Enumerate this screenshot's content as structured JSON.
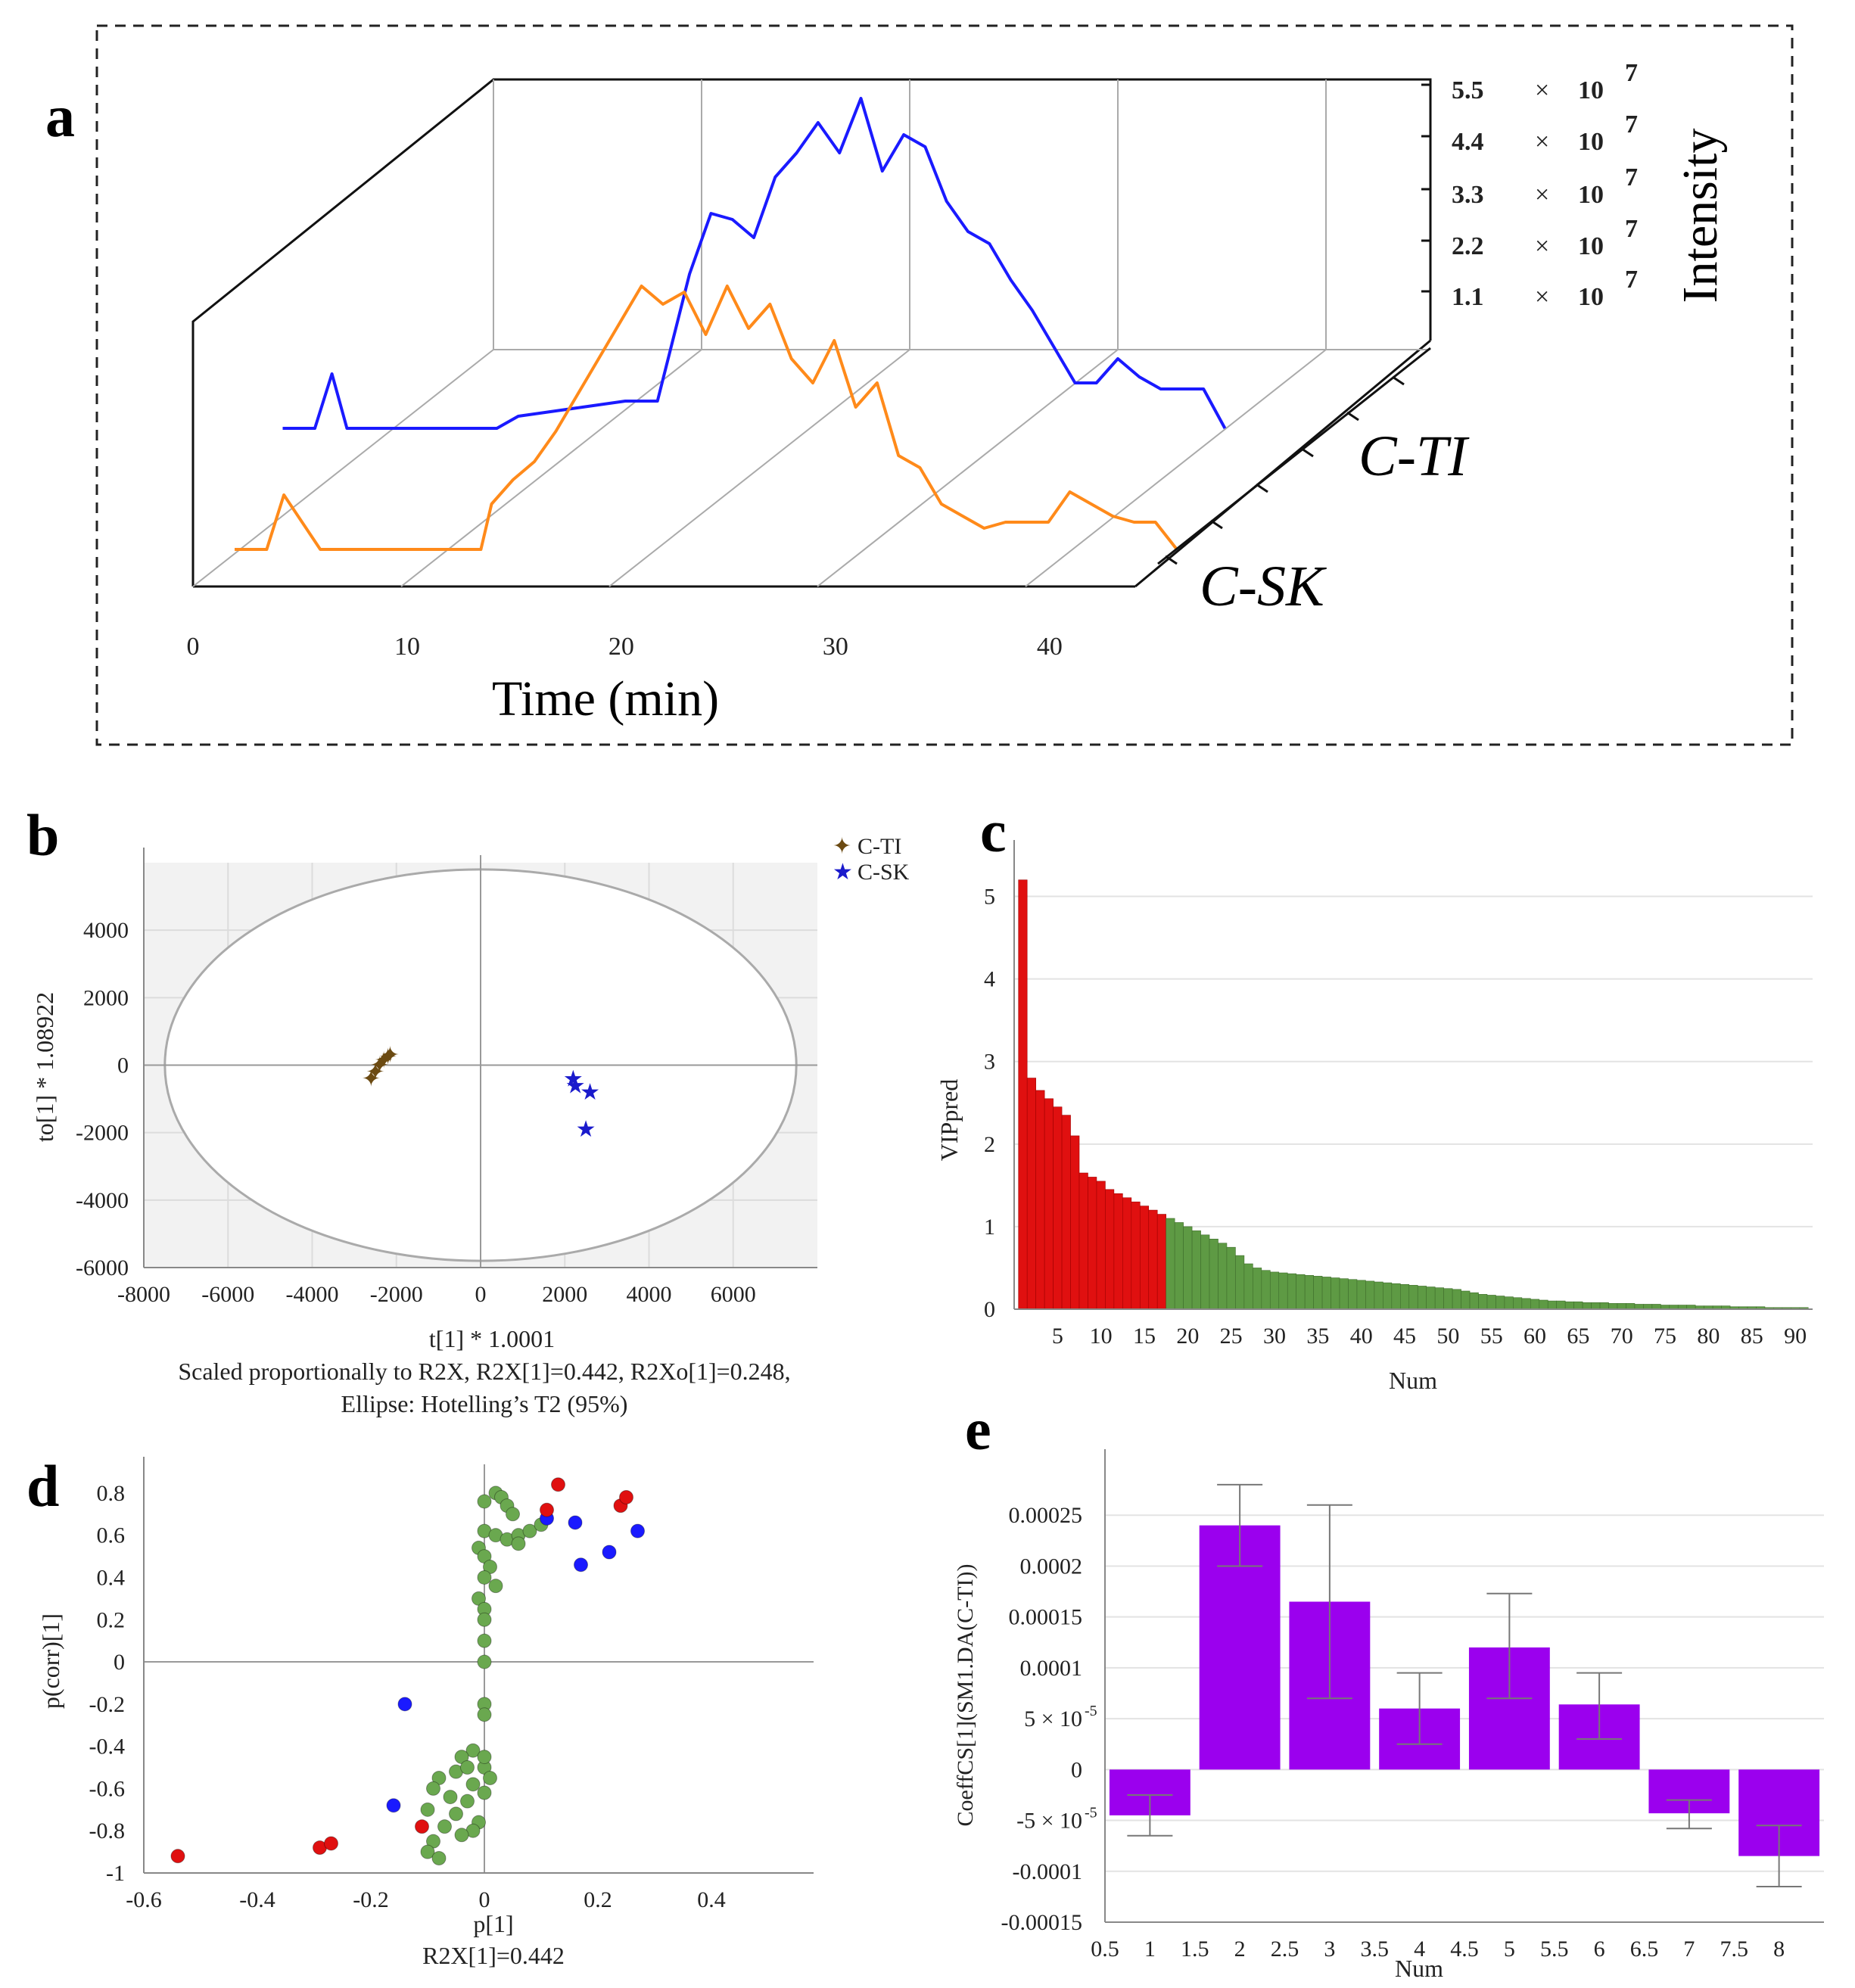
{
  "panel_letters": {
    "a": "a",
    "b": "b",
    "c": "c",
    "d": "d",
    "e": "e"
  },
  "chart_data": [
    {
      "id": "a",
      "type": "line",
      "title": "",
      "xlabel": "Time (min)",
      "ylabel": "Intensity",
      "x_ticks": [
        "0",
        "10",
        "20",
        "30",
        "40"
      ],
      "xlim": [
        0,
        44
      ],
      "y_ticks": [
        {
          "mant": "1.1",
          "exp": "7"
        },
        {
          "mant": "2.2",
          "exp": "7"
        },
        {
          "mant": "3.3",
          "exp": "7"
        },
        {
          "mant": "4.4",
          "exp": "7"
        },
        {
          "mant": "5.5",
          "exp": "7"
        }
      ],
      "times_symbol": "×",
      "series_labels": [
        "C-TI",
        "C-SK"
      ],
      "series": [
        {
          "name": "C-TI",
          "color": "#1a1aff",
          "x": [
            0,
            1.5,
            2.3,
            3,
            6,
            10,
            11,
            12,
            14,
            16,
            17.5,
            19,
            20,
            21,
            22,
            23,
            24,
            25,
            26,
            27,
            28,
            29,
            30,
            31,
            32,
            33,
            34,
            35,
            36,
            37,
            38,
            39,
            40,
            41,
            42,
            43,
            44
          ],
          "y": [
            0.05,
            0.05,
            0.95,
            0.05,
            0.05,
            0.05,
            0.25,
            0.3,
            0.4,
            0.5,
            0.5,
            2.6,
            3.6,
            3.5,
            3.2,
            4.2,
            4.6,
            5.1,
            4.6,
            5.5,
            4.3,
            4.9,
            4.7,
            3.8,
            3.3,
            3.1,
            2.5,
            2.0,
            1.4,
            0.8,
            0.8,
            1.2,
            0.9,
            0.7,
            0.7,
            0.7,
            0.05
          ]
        },
        {
          "name": "C-SK",
          "color": "#ff8a1a",
          "x": [
            0,
            0.8,
            1.5,
            2.3,
            4,
            8,
            10,
            11.5,
            12,
            13,
            14,
            15,
            16,
            17,
            18,
            19,
            20,
            21,
            22,
            23,
            24,
            25,
            26,
            27,
            28,
            29,
            30,
            31,
            32,
            33,
            34,
            35,
            36,
            37,
            38,
            39,
            40,
            41,
            42,
            43,
            44
          ],
          "y": [
            0.05,
            0.05,
            0.05,
            0.95,
            0.05,
            0.05,
            0.05,
            0.05,
            0.8,
            1.2,
            1.5,
            2.0,
            2.6,
            3.2,
            3.8,
            4.4,
            4.1,
            4.3,
            3.6,
            4.4,
            3.7,
            4.1,
            3.2,
            2.8,
            3.5,
            2.4,
            2.8,
            1.6,
            1.4,
            0.8,
            0.6,
            0.4,
            0.5,
            0.5,
            0.5,
            1.0,
            0.8,
            0.6,
            0.5,
            0.5,
            0.05
          ]
        }
      ]
    },
    {
      "id": "b",
      "type": "scatter",
      "xlabel": "t[1] * 1.0001",
      "ylabel": "to[1] * 1.08922",
      "caption_lines": [
        "Scaled proportionally to R2X, R2X[1]=0.442, R2Xo[1]=0.248,",
        "Ellipse: Hotelling’s T2 (95%)"
      ],
      "xlim": [
        -8000,
        8000
      ],
      "ylim": [
        -6000,
        6000
      ],
      "x_ticks": [
        "-8000",
        "-6000",
        "-4000",
        "-2000",
        "0",
        "2000",
        "4000",
        "6000"
      ],
      "y_ticks": [
        "-6000",
        "-4000",
        "-2000",
        "0",
        "2000",
        "4000"
      ],
      "ellipse_radii": [
        7500,
        5800
      ],
      "legend_position": "top-right",
      "series": [
        {
          "name": "C-TI",
          "color": "#6b4a12",
          "marker": "✦",
          "points": [
            [
              -2600,
              -400
            ],
            [
              -2500,
              -200
            ],
            [
              -2400,
              0
            ],
            [
              -2300,
              150
            ],
            [
              -2200,
              250
            ],
            [
              -2150,
              300
            ]
          ]
        },
        {
          "name": "C-SK",
          "color": "#1a1acc",
          "marker": "★",
          "points": [
            [
              2200,
              -400
            ],
            [
              2250,
              -600
            ],
            [
              2600,
              -800
            ],
            [
              2500,
              -1900
            ]
          ]
        }
      ]
    },
    {
      "id": "c",
      "type": "bar",
      "xlabel": "Num",
      "ylabel": "VIPpred",
      "xlim": [
        0,
        92
      ],
      "ylim": [
        0,
        5.5
      ],
      "x_ticks": [
        "5",
        "10",
        "15",
        "20",
        "25",
        "30",
        "35",
        "40",
        "45",
        "50",
        "55",
        "60",
        "65",
        "70",
        "75",
        "80",
        "85",
        "90"
      ],
      "y_ticks": [
        "0",
        "1",
        "2",
        "3",
        "4",
        "5"
      ],
      "red_count": 17,
      "colors": {
        "high": "#e01010",
        "low": "#5e9a44"
      },
      "values": [
        5.2,
        2.8,
        2.65,
        2.55,
        2.45,
        2.35,
        2.1,
        1.65,
        1.6,
        1.55,
        1.45,
        1.4,
        1.35,
        1.3,
        1.25,
        1.2,
        1.15,
        1.1,
        1.05,
        1.0,
        0.95,
        0.9,
        0.85,
        0.8,
        0.75,
        0.65,
        0.55,
        0.5,
        0.47,
        0.45,
        0.44,
        0.43,
        0.42,
        0.41,
        0.4,
        0.39,
        0.38,
        0.37,
        0.36,
        0.35,
        0.34,
        0.33,
        0.32,
        0.31,
        0.3,
        0.29,
        0.28,
        0.27,
        0.26,
        0.25,
        0.24,
        0.22,
        0.2,
        0.18,
        0.17,
        0.16,
        0.15,
        0.14,
        0.13,
        0.12,
        0.11,
        0.1,
        0.1,
        0.09,
        0.09,
        0.08,
        0.08,
        0.08,
        0.07,
        0.07,
        0.07,
        0.06,
        0.06,
        0.06,
        0.05,
        0.05,
        0.05,
        0.05,
        0.04,
        0.04,
        0.04,
        0.04,
        0.03,
        0.03,
        0.03,
        0.03,
        0.02,
        0.02,
        0.02,
        0.02,
        0.02
      ]
    },
    {
      "id": "d",
      "type": "scatter",
      "xlabel": "p[1]",
      "ylabel": "p(corr)[1]",
      "caption": "R2X[1]=0.442",
      "xlim": [
        -0.6,
        0.58
      ],
      "ylim": [
        -1,
        0.9
      ],
      "x_ticks": [
        "-0.6",
        "-0.4",
        "-0.2",
        "0",
        "0.2",
        "0.4"
      ],
      "y_ticks": [
        "-1",
        "-0.8",
        "-0.6",
        "-0.4",
        "-0.2",
        "0",
        "0.2",
        "0.4",
        "0.6",
        "0.8"
      ],
      "series": [
        {
          "name": "green",
          "color": "#6aa84f",
          "points": [
            [
              0.0,
              0.76
            ],
            [
              0.02,
              0.8
            ],
            [
              0.03,
              0.78
            ],
            [
              0.04,
              0.74
            ],
            [
              0.05,
              0.7
            ],
            [
              0.0,
              0.62
            ],
            [
              0.02,
              0.6
            ],
            [
              0.04,
              0.58
            ],
            [
              0.06,
              0.6
            ],
            [
              0.08,
              0.62
            ],
            [
              -0.01,
              0.54
            ],
            [
              0.0,
              0.5
            ],
            [
              0.01,
              0.45
            ],
            [
              0.0,
              0.4
            ],
            [
              0.02,
              0.36
            ],
            [
              -0.01,
              0.3
            ],
            [
              0.0,
              0.25
            ],
            [
              0.0,
              0.2
            ],
            [
              0.0,
              0.1
            ],
            [
              0.0,
              -0.2
            ],
            [
              0.0,
              -0.25
            ],
            [
              -0.02,
              -0.42
            ],
            [
              -0.04,
              -0.45
            ],
            [
              0.0,
              -0.5
            ],
            [
              -0.05,
              -0.52
            ],
            [
              -0.08,
              -0.55
            ],
            [
              -0.02,
              -0.58
            ],
            [
              0.0,
              -0.62
            ],
            [
              -0.06,
              -0.64
            ],
            [
              -0.03,
              -0.66
            ],
            [
              -0.09,
              -0.6
            ],
            [
              -0.1,
              -0.7
            ],
            [
              -0.05,
              -0.72
            ],
            [
              -0.01,
              -0.76
            ],
            [
              -0.07,
              -0.78
            ],
            [
              -0.02,
              -0.8
            ],
            [
              -0.04,
              -0.82
            ],
            [
              -0.09,
              -0.85
            ],
            [
              -0.1,
              -0.9
            ],
            [
              -0.08,
              -0.93
            ],
            [
              0.0,
              -0.45
            ],
            [
              0.01,
              -0.55
            ],
            [
              -0.03,
              -0.5
            ],
            [
              0.1,
              0.65
            ],
            [
              0.06,
              0.56
            ],
            [
              0.0,
              0.0
            ]
          ]
        },
        {
          "name": "blue",
          "color": "#1a1aff",
          "points": [
            [
              0.11,
              0.68
            ],
            [
              0.16,
              0.66
            ],
            [
              0.17,
              0.46
            ],
            [
              0.22,
              0.52
            ],
            [
              0.27,
              0.62
            ],
            [
              -0.14,
              -0.2
            ],
            [
              -0.16,
              -0.68
            ]
          ]
        },
        {
          "name": "red",
          "color": "#e01010",
          "points": [
            [
              0.11,
              0.72
            ],
            [
              0.13,
              0.84
            ],
            [
              0.24,
              0.74
            ],
            [
              0.25,
              0.78
            ],
            [
              -0.54,
              -0.92
            ],
            [
              -0.29,
              -0.88
            ],
            [
              -0.27,
              -0.86
            ],
            [
              -0.11,
              -0.78
            ]
          ]
        }
      ]
    },
    {
      "id": "e",
      "type": "bar",
      "xlabel": "Num",
      "ylabel": "CoeffCS[1](SM1.DA(C-TI))",
      "xlim": [
        0.5,
        8.5
      ],
      "ylim": [
        -0.00015,
        0.0003
      ],
      "x_ticks": [
        "0.5",
        "1",
        "1.5",
        "2",
        "2.5",
        "3",
        "3.5",
        "4",
        "4.5",
        "5",
        "5.5",
        "6",
        "6.5",
        "7",
        "7.5",
        "8"
      ],
      "y_ticks": [
        "-0.00015",
        "-0.0001",
        "-5 × 10-5",
        "0",
        "5 × 10-5",
        "0.0001",
        "0.00015",
        "0.0002",
        "0.00025"
      ],
      "color": "#9b00ee",
      "categories": [
        1,
        2,
        3,
        4,
        5,
        6,
        7,
        8
      ],
      "values": [
        -4.5e-05,
        0.00024,
        0.000165,
        6e-05,
        0.00012,
        6.4e-05,
        -4.3e-05,
        -8.5e-05
      ],
      "err_low": [
        -6.5e-05,
        0.0002,
        7e-05,
        2.5e-05,
        7e-05,
        3e-05,
        -5.8e-05,
        -0.000115
      ],
      "err_high": [
        -2.5e-05,
        0.00028,
        0.00026,
        9.5e-05,
        0.000173,
        9.5e-05,
        -3e-05,
        -5.5e-05
      ]
    }
  ]
}
